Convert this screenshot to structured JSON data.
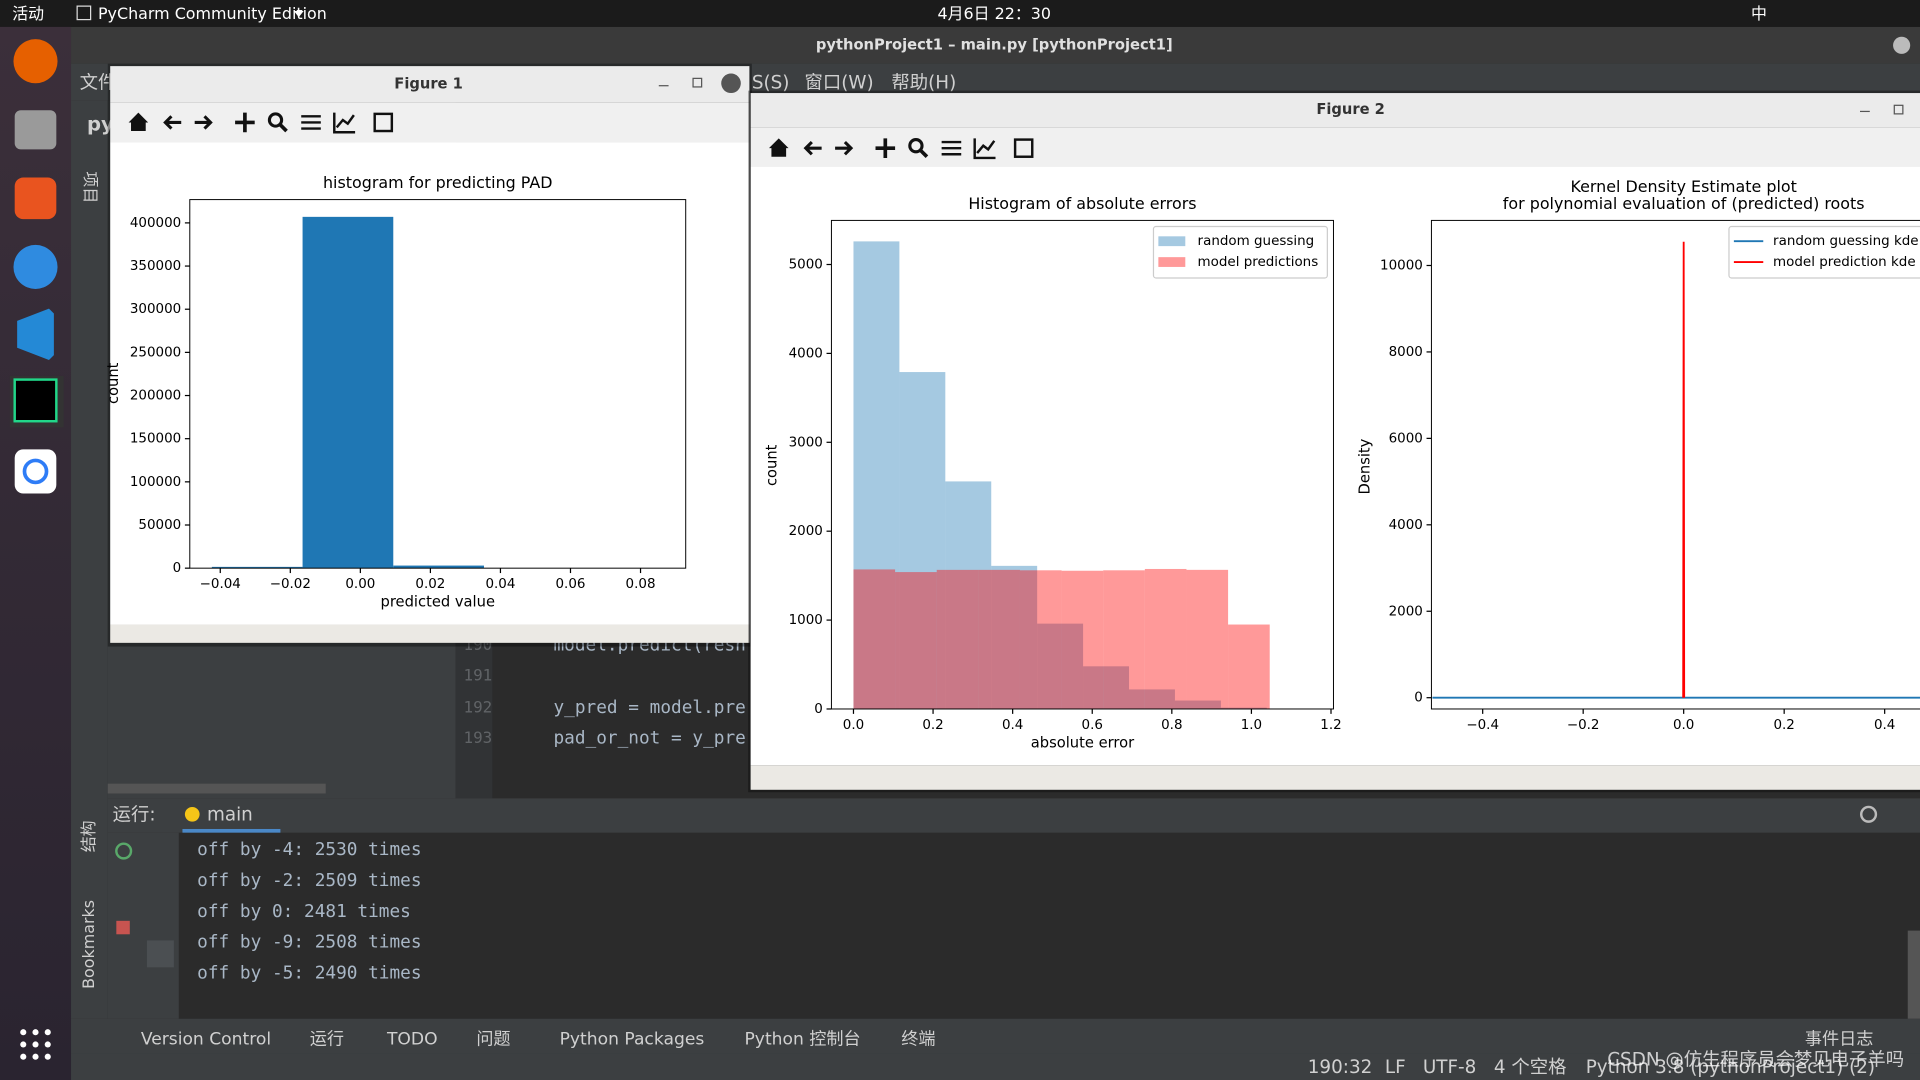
{
  "topbar": {
    "activities": "活动",
    "app": "PyCharm Community Edition",
    "clock": "4月6日 22：30",
    "input": "中"
  },
  "ide": {
    "title": "pythonProject1 – main.py [pythonProject1]",
    "menu": [
      "文件",
      "S(S)",
      "窗口(W)",
      "帮助(H)"
    ],
    "project_abbr": "py",
    "side_tabs": [
      "项目",
      "结构",
      "Bookmarks"
    ],
    "line_numbers": [
      190,
      191,
      192,
      193
    ],
    "code_lines": [
      "model.predict(resh",
      "y_pred = model.pre",
      "pad_or_not = y_pre"
    ]
  },
  "run": {
    "label": "运行:",
    "tab": "main",
    "output": [
      "off by -4: 2530 times",
      "off by -2: 2509 times",
      "off by 0: 2481 times",
      "off by -9: 2508 times",
      "off by -5: 2490 times"
    ]
  },
  "toolwindows": [
    "Version Control",
    "运行",
    "TODO",
    "问题",
    "Python Packages",
    "Python 控制台",
    "终端",
    "事件日志"
  ],
  "status": [
    "190:32",
    "LF",
    "UTF-8",
    "4 个空格",
    "Python 3.8 (pythonProject1) (2)"
  ],
  "watermark": "CSDN @仿生程序员会梦见电子羊吗",
  "windows": [
    {
      "title": "Figure 1"
    },
    {
      "title": "Figure 2"
    }
  ],
  "chart_data": [
    {
      "type": "histogram",
      "title": "histogram for predicting PAD",
      "x_label": "predicted value",
      "y_label": "count",
      "bins": [
        -0.0424,
        -0.0165,
        0.0094,
        0.0353,
        0.0612,
        0.0871
      ],
      "values": [
        1500,
        407000,
        3000,
        0,
        0
      ],
      "color": "#1f77b4",
      "xlim": [
        -0.0487,
        0.0929
      ],
      "ylim": [
        0,
        427000
      ],
      "xticks": [
        {
          "value": -0.04,
          "label": "−0.04"
        },
        {
          "value": -0.02,
          "label": "−0.02"
        },
        {
          "value": 0,
          "label": "0.00"
        },
        0.02,
        0.04,
        0.06,
        0.08
      ],
      "yticks": [
        0,
        50000,
        100000,
        150000,
        200000,
        250000,
        300000,
        350000,
        400000
      ]
    },
    {
      "type": "histogram",
      "title": "Histogram of absolute errors",
      "x_label": "absolute error",
      "y_label": "count",
      "legend": "upper right",
      "series": [
        {
          "name": "random guessing",
          "color": "#1f77b4",
          "alpha": 0.4,
          "bins": [
            0,
            0.1154,
            0.2308,
            0.3462,
            0.4616,
            0.577,
            0.6924,
            0.8078,
            0.9232,
            1.0386,
            1.154
          ],
          "values": [
            5260,
            3790,
            2560,
            1610,
            960,
            480,
            220,
            95,
            15,
            5
          ]
        },
        {
          "name": "model predictions",
          "color": "#ff0000",
          "alpha": 0.4,
          "bins": [
            0,
            0.1046,
            0.2092,
            0.3138,
            0.4184,
            0.523,
            0.6276,
            0.7322,
            0.8368,
            0.9414,
            1.046
          ],
          "values": [
            1570,
            1540,
            1565,
            1565,
            1560,
            1555,
            1560,
            1575,
            1565,
            950
          ]
        }
      ],
      "xlim": [
        -0.0554,
        1.2062
      ],
      "ylim": [
        0,
        5496
      ],
      "xticks": [
        {
          "value": 0,
          "label": "0.0"
        },
        0.2,
        0.4,
        0.6,
        0.8,
        {
          "value": 1,
          "label": "1.0"
        },
        1.2
      ],
      "yticks": [
        0,
        1000,
        2000,
        3000,
        4000,
        5000
      ]
    },
    {
      "type": "line",
      "title": [
        "Kernel Density Estimate plot",
        "for polynomial evaluation of (predicted) roots"
      ],
      "y_label": "Density",
      "legend": "upper right",
      "series": [
        {
          "name": "random guessing kde",
          "color": "#1f77b4",
          "x": [
            -0.5,
            0,
            0.5
          ],
          "values": [
            0,
            0,
            0
          ]
        },
        {
          "name": "model prediction kde",
          "color": "#ff0000",
          "x": [
            -0.001,
            0,
            0.001
          ],
          "values": [
            0,
            10550,
            0
          ]
        }
      ],
      "xlim": [
        -0.502,
        0.502
      ],
      "ylim": [
        -261,
        11043
      ],
      "xticks": [
        {
          "value": -0.4,
          "label": "−0.4"
        },
        {
          "value": -0.2,
          "label": "−0.2"
        },
        {
          "value": 0,
          "label": "0.0"
        },
        0.2,
        0.4
      ],
      "yticks": [
        0,
        2000,
        4000,
        6000,
        8000,
        10000
      ]
    }
  ]
}
